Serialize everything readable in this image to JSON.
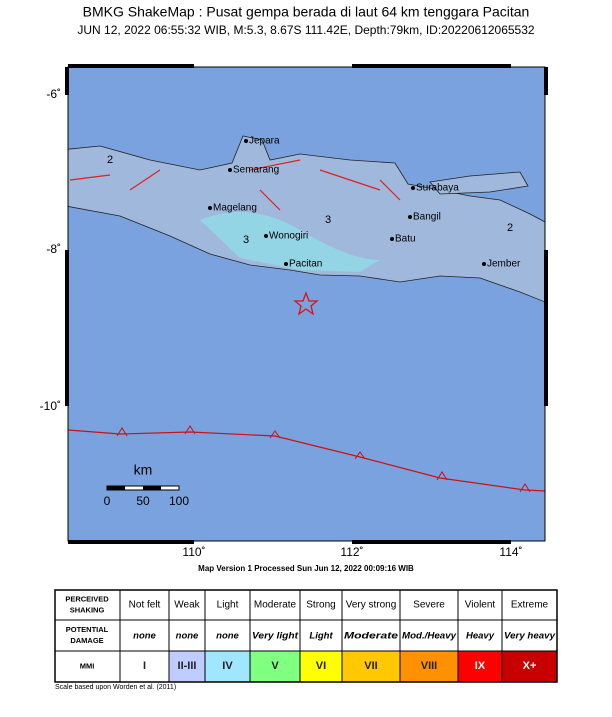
{
  "header": {
    "title": "BMKG ShakeMap : Pusat gempa berada di laut 64 km tenggara Pacitan",
    "subtitle": "JUN 12, 2022 06:55:32 WIB, M:5.3, 8.67S 111.42E, Depth:79km, ID:20220612065532"
  },
  "map": {
    "lat_labels": [
      "-6˚",
      "-8˚",
      "-10˚"
    ],
    "lon_labels": [
      "110˚",
      "112˚",
      "114˚"
    ],
    "places": [
      "Jepara",
      "Semarang",
      "Magelang",
      "Wonogiri",
      "Pacitan",
      "Surabaya",
      "Bangil",
      "Batu",
      "Jember"
    ],
    "contour_labels": [
      "2",
      "3",
      "3",
      "2"
    ],
    "scale": {
      "unit": "km",
      "labels": [
        "0",
        "50",
        "100"
      ]
    }
  },
  "processed": "Map Version 1 Processed Sun Jun 12, 2022 00:09:16 WIB",
  "legend": {
    "row_headers": [
      [
        "PERCEIVED",
        "SHAKING"
      ],
      [
        "POTENTIAL",
        "DAMAGE"
      ],
      [
        "MMI"
      ]
    ],
    "shaking": [
      "Not felt",
      "Weak",
      "Light",
      "Moderate",
      "Strong",
      "Very strong",
      "Severe",
      "Violent",
      "Extreme"
    ],
    "damage": [
      "none",
      "none",
      "none",
      "Very light",
      "Light",
      "Moderate",
      "Mod./Heavy",
      "Heavy",
      "Very heavy"
    ],
    "mmi": [
      "I",
      "II-III",
      "IV",
      "V",
      "VI",
      "VII",
      "VIII",
      "IX",
      "X+"
    ],
    "mmi_colors": [
      "#ffffff",
      "#bfccff",
      "#a0e6ff",
      "#80ff80",
      "#ffff00",
      "#ffc800",
      "#ff9100",
      "#ff0000",
      "#c80000"
    ]
  },
  "footnote": "Scale based upon Worden et al. (2011)"
}
